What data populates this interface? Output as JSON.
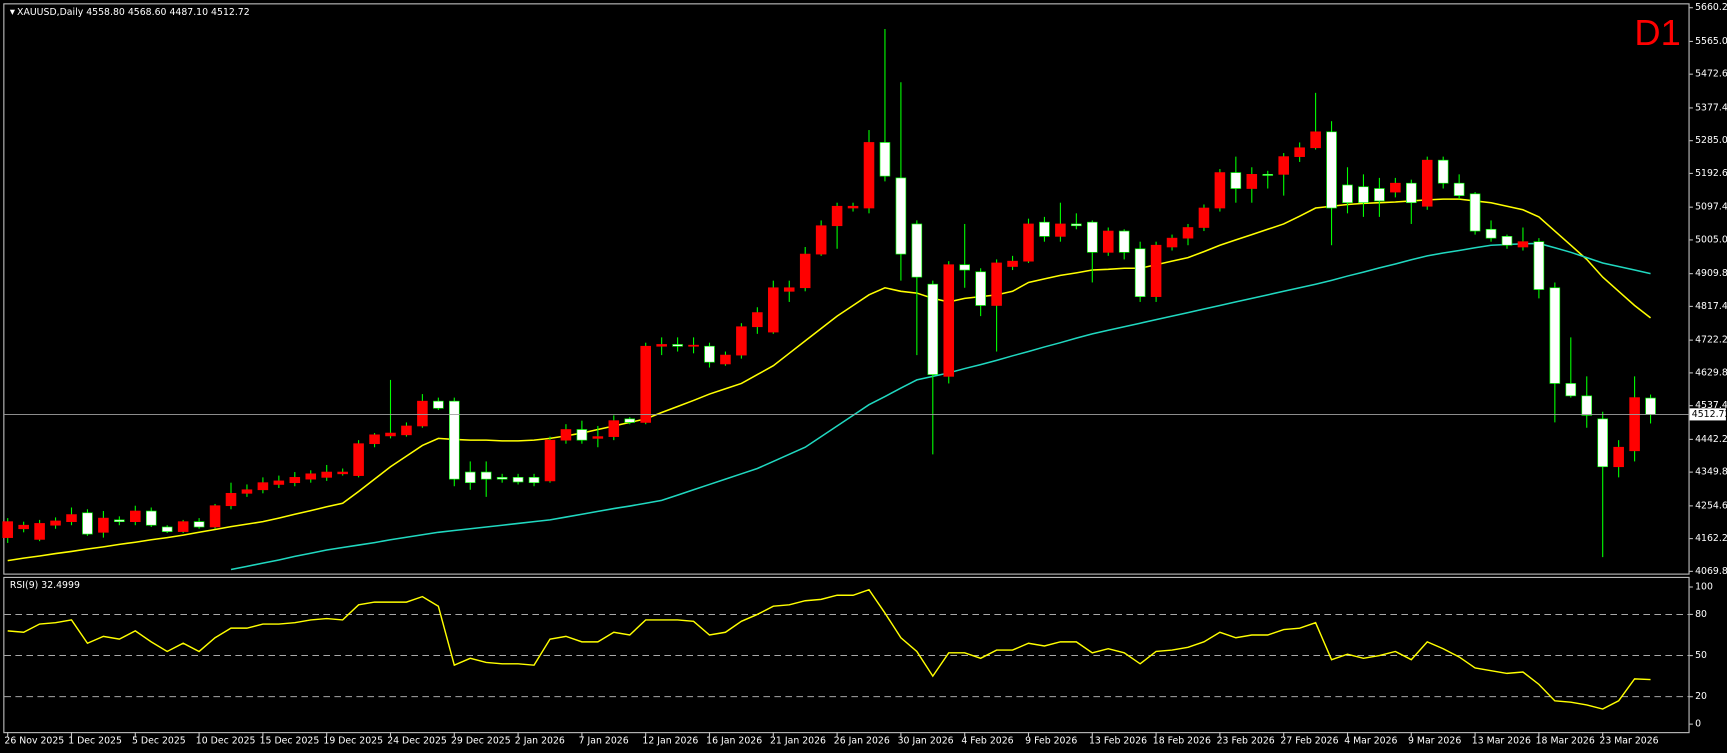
{
  "chart_data": [
    {
      "type": "candlestick",
      "symbol": "XAUUSD,Daily",
      "header_values": [
        "4558.80",
        "4568.60",
        "4487.10",
        "4512.72"
      ],
      "timeframe": "D1",
      "categories": [
        "26 Nov 2025",
        null,
        null,
        null,
        "1 Dec 2025",
        null,
        null,
        null,
        "5 Dec 2025",
        null,
        null,
        null,
        "10 Dec 2025",
        null,
        null,
        null,
        "15 Dec 2025",
        null,
        null,
        null,
        "19 Dec 2025",
        null,
        null,
        null,
        "24 Dec 2025",
        null,
        null,
        null,
        "29 Dec 2025",
        null,
        null,
        null,
        "2 Jan 2026",
        null,
        null,
        null,
        "7 Jan 2026",
        null,
        null,
        null,
        "12 Jan 2026",
        null,
        null,
        null,
        "16 Jan 2026",
        null,
        null,
        null,
        "21 Jan 2026",
        null,
        null,
        null,
        "26 Jan 2026",
        null,
        null,
        null,
        "30 Jan 2026",
        null,
        null,
        null,
        "4 Feb 2026",
        null,
        null,
        null,
        "9 Feb 2026",
        null,
        null,
        null,
        "13 Feb 2026",
        null,
        null,
        null,
        "18 Feb 2026",
        null,
        null,
        null,
        "23 Feb 2026",
        null,
        null,
        null,
        "27 Feb 2026",
        null,
        null,
        null,
        "4 Mar 2026",
        null,
        null,
        null,
        "9 Mar 2026",
        null,
        null,
        null,
        "13 Mar 2026",
        null,
        null,
        null,
        "18 Mar 2026",
        null,
        null,
        null,
        "23 Mar 2026",
        null,
        null,
        null
      ],
      "open": [
        4165,
        4190,
        4160,
        4200,
        4210,
        4235,
        4180,
        4215,
        4210,
        4240,
        4195,
        4182,
        4210,
        4195,
        4255,
        4290,
        4300,
        4315,
        4320,
        4330,
        4335,
        4345,
        4340,
        4430,
        4452,
        4455,
        4480,
        4550,
        4550,
        4350,
        4350,
        4335,
        4335,
        4335,
        4325,
        4440,
        4470,
        4445,
        4450,
        4500,
        4490,
        4705,
        4710,
        4705,
        4705,
        4655,
        4680,
        4760,
        4745,
        4860,
        4870,
        4965,
        5045,
        5095,
        5095,
        5280,
        5180,
        5050,
        4880,
        4620,
        4935,
        4915,
        4820,
        4930,
        4945,
        5055,
        5015,
        5050,
        5055,
        4970,
        5030,
        4980,
        4845,
        4985,
        5010,
        5040,
        5095,
        5195,
        5150,
        5190,
        5190,
        5240,
        5265,
        5310,
        5160,
        5155,
        5150,
        5140,
        5165,
        5100,
        5230,
        5165,
        5135,
        5035,
        5015,
        4985,
        5000,
        4870,
        4600,
        4565,
        4500,
        4365,
        4410,
        4558.8
      ],
      "high": [
        4220,
        4210,
        4215,
        4222,
        4250,
        4245,
        4240,
        4225,
        4255,
        4250,
        4200,
        4215,
        4220,
        4260,
        4320,
        4315,
        4335,
        4340,
        4350,
        4355,
        4370,
        4360,
        4440,
        4460,
        4610,
        4490,
        4570,
        4560,
        4560,
        4380,
        4380,
        4345,
        4345,
        4345,
        4450,
        4485,
        4495,
        4480,
        4510,
        4505,
        4715,
        4730,
        4730,
        4730,
        4715,
        4690,
        4770,
        4815,
        4890,
        4890,
        4985,
        5060,
        5110,
        5110,
        5315,
        5600,
        5450,
        5060,
        4890,
        4945,
        5050,
        4925,
        4950,
        4960,
        5065,
        5070,
        5110,
        5080,
        5060,
        5040,
        5035,
        5000,
        5000,
        5020,
        5050,
        5105,
        5205,
        5240,
        5210,
        5200,
        5250,
        5280,
        5420,
        5340,
        5210,
        5190,
        5180,
        5180,
        5175,
        5240,
        5240,
        5190,
        5140,
        5060,
        5020,
        5040,
        5010,
        4885,
        4730,
        4620,
        4520,
        4440,
        4620,
        4568.6
      ],
      "low": [
        4150,
        4180,
        4155,
        4190,
        4200,
        4170,
        4165,
        4200,
        4200,
        4195,
        4178,
        4178,
        4190,
        4190,
        4245,
        4280,
        4290,
        4305,
        4310,
        4320,
        4325,
        4340,
        4335,
        4420,
        4445,
        4450,
        4475,
        4525,
        4310,
        4300,
        4280,
        4320,
        4315,
        4310,
        4320,
        4430,
        4430,
        4420,
        4440,
        4485,
        4485,
        4680,
        4690,
        4685,
        4645,
        4650,
        4670,
        4740,
        4740,
        4830,
        4860,
        4960,
        4980,
        5085,
        5080,
        5170,
        4890,
        4680,
        4400,
        4600,
        4870,
        4790,
        4690,
        4920,
        4940,
        5000,
        5000,
        5035,
        4885,
        4960,
        4950,
        4830,
        4830,
        4975,
        4990,
        5030,
        5085,
        5110,
        5110,
        5150,
        5130,
        5225,
        5260,
        4990,
        5080,
        5070,
        5070,
        5125,
        5050,
        5090,
        5150,
        5120,
        5020,
        5000,
        4980,
        4975,
        4840,
        4490,
        4560,
        4475,
        4110,
        4335,
        4380,
        4487.1
      ],
      "close": [
        4210,
        4200,
        4205,
        4212,
        4230,
        4175,
        4220,
        4210,
        4240,
        4200,
        4182,
        4210,
        4195,
        4255,
        4290,
        4300,
        4320,
        4325,
        4335,
        4345,
        4350,
        4350,
        4430,
        4455,
        4460,
        4480,
        4550,
        4530,
        4330,
        4320,
        4330,
        4330,
        4322,
        4320,
        4440,
        4470,
        4440,
        4450,
        4495,
        4490,
        4705,
        4710,
        4705,
        4708,
        4660,
        4680,
        4760,
        4800,
        4870,
        4870,
        4965,
        5045,
        5100,
        5100,
        5280,
        5185,
        4965,
        4900,
        4625,
        4935,
        4920,
        4820,
        4940,
        4945,
        5050,
        5015,
        5050,
        5045,
        4970,
        5030,
        4970,
        4845,
        4990,
        5010,
        5040,
        5095,
        5195,
        5150,
        5190,
        5190,
        5240,
        5265,
        5310,
        5095,
        5110,
        5110,
        5115,
        5165,
        5110,
        5230,
        5165,
        5130,
        5030,
        5010,
        4990,
        5000,
        4865,
        4600,
        4565,
        4510,
        4365,
        4420,
        4560,
        4512.72
      ],
      "up_color": "#ff0000",
      "down_color": "#ffffff",
      "wick_color": "#00ff00",
      "lines": [
        {
          "color": "#ffff00",
          "values": [
            4100,
            4107,
            4113,
            4120,
            4126,
            4133,
            4139,
            4146,
            4152,
            4159,
            4165,
            4172,
            4180,
            4188,
            4196,
            4203,
            4210,
            4220,
            4231,
            4241,
            4252,
            4262,
            4295,
            4330,
            4365,
            4395,
            4425,
            4445,
            4442,
            4440,
            4440,
            4438,
            4438,
            4440,
            4445,
            4452,
            4460,
            4470,
            4480,
            4490,
            4500,
            4518,
            4535,
            4552,
            4570,
            4585,
            4600,
            4625,
            4650,
            4685,
            4720,
            4755,
            4790,
            4820,
            4850,
            4870,
            4860,
            4855,
            4840,
            4830,
            4840,
            4845,
            4850,
            4860,
            4885,
            4895,
            4905,
            4912,
            4920,
            4922,
            4925,
            4925,
            4935,
            4945,
            4955,
            4972,
            4990,
            5005,
            5020,
            5035,
            5050,
            5072,
            5095,
            5100,
            5105,
            5108,
            5110,
            5112,
            5115,
            5118,
            5120,
            5120,
            5115,
            5110,
            5100,
            5090,
            5070,
            5030,
            4990,
            4950,
            4900,
            4860,
            4820,
            4785
          ]
        },
        {
          "color": "#20d8c0",
          "values": [
            null,
            null,
            null,
            null,
            null,
            null,
            null,
            null,
            null,
            null,
            null,
            null,
            null,
            null,
            4075,
            4084,
            4093,
            4102,
            4112,
            4121,
            4130,
            4137,
            4144,
            4151,
            4159,
            4166,
            4173,
            4180,
            4185,
            4190,
            4195,
            4200,
            4205,
            4210,
            4215,
            4223,
            4231,
            4239,
            4247,
            4254,
            4262,
            4270,
            4285,
            4300,
            4315,
            4330,
            4345,
            4360,
            4380,
            4400,
            4420,
            4450,
            4480,
            4510,
            4540,
            4563,
            4587,
            4610,
            4620,
            4630,
            4642,
            4653,
            4665,
            4678,
            4690,
            4703,
            4715,
            4728,
            4740,
            4750,
            4760,
            4770,
            4780,
            4790,
            4800,
            4810,
            4820,
            4830,
            4840,
            4850,
            4860,
            4870,
            4880,
            4891,
            4903,
            4914,
            4926,
            4937,
            4949,
            4960,
            4968,
            4975,
            4983,
            4990,
            4992,
            4994,
            4995,
            4983,
            4970,
            4955,
            4940,
            4930,
            4920,
            4910
          ]
        }
      ],
      "price_line": {
        "value": 4512.72,
        "label": "4512.72"
      },
      "ylim": [
        4069.8,
        5660.2
      ],
      "yticks": [
        {
          "value": 5660.2,
          "label": "5660.20"
        },
        {
          "value": 5565,
          "label": "5565.00"
        },
        {
          "value": 5472.6,
          "label": "5472.60"
        },
        {
          "value": 5377.4,
          "label": "5377.40"
        },
        {
          "value": 5285,
          "label": "5285.00"
        },
        {
          "value": 5192.6,
          "label": "5192.60"
        },
        {
          "value": 5097.4,
          "label": "5097.40"
        },
        {
          "value": 5005,
          "label": "5005.00"
        },
        {
          "value": 4909.8,
          "label": "4909.80"
        },
        {
          "value": 4817.4,
          "label": "4817.40"
        },
        {
          "value": 4722.2,
          "label": "4722.20"
        },
        {
          "value": 4629.8,
          "label": "4629.80"
        },
        {
          "value": 4537.4,
          "label": "4537.40"
        },
        {
          "value": 4442.2,
          "label": "4442.20"
        },
        {
          "value": 4349.8,
          "label": "4349.80"
        },
        {
          "value": 4254.6,
          "label": "4254.60"
        },
        {
          "value": 4162.2,
          "label": "4162.20"
        },
        {
          "value": 4069.8,
          "label": "4069.80"
        }
      ]
    },
    {
      "type": "line",
      "title": "RSI(9) 32.4999",
      "series": [
        {
          "color": "#ffff00",
          "values": [
            68,
            67,
            73,
            74,
            76,
            59,
            64,
            62,
            68,
            60,
            53,
            59,
            53,
            63,
            70,
            70,
            73,
            73,
            74,
            76,
            77,
            76,
            87,
            89,
            89,
            89,
            93,
            86,
            43,
            48,
            45,
            44,
            44,
            43,
            62,
            64,
            60,
            60,
            67,
            65,
            76,
            76,
            76,
            75,
            65,
            67,
            75,
            80,
            86,
            87,
            90,
            91,
            94,
            94,
            98,
            81,
            63,
            53,
            35,
            52,
            52,
            48,
            54,
            54,
            59,
            57,
            60,
            60,
            52,
            55,
            52,
            44,
            53,
            54,
            56,
            60,
            67,
            63,
            65,
            65,
            69,
            70,
            74,
            47,
            51,
            48,
            50,
            53,
            47,
            60,
            55,
            49,
            41,
            39,
            37,
            38,
            29,
            17,
            16,
            14,
            11,
            17,
            33,
            32.4999
          ]
        }
      ],
      "ylim": [
        -5,
        105
      ],
      "yticks": [
        100,
        80,
        50,
        20,
        0
      ]
    }
  ]
}
